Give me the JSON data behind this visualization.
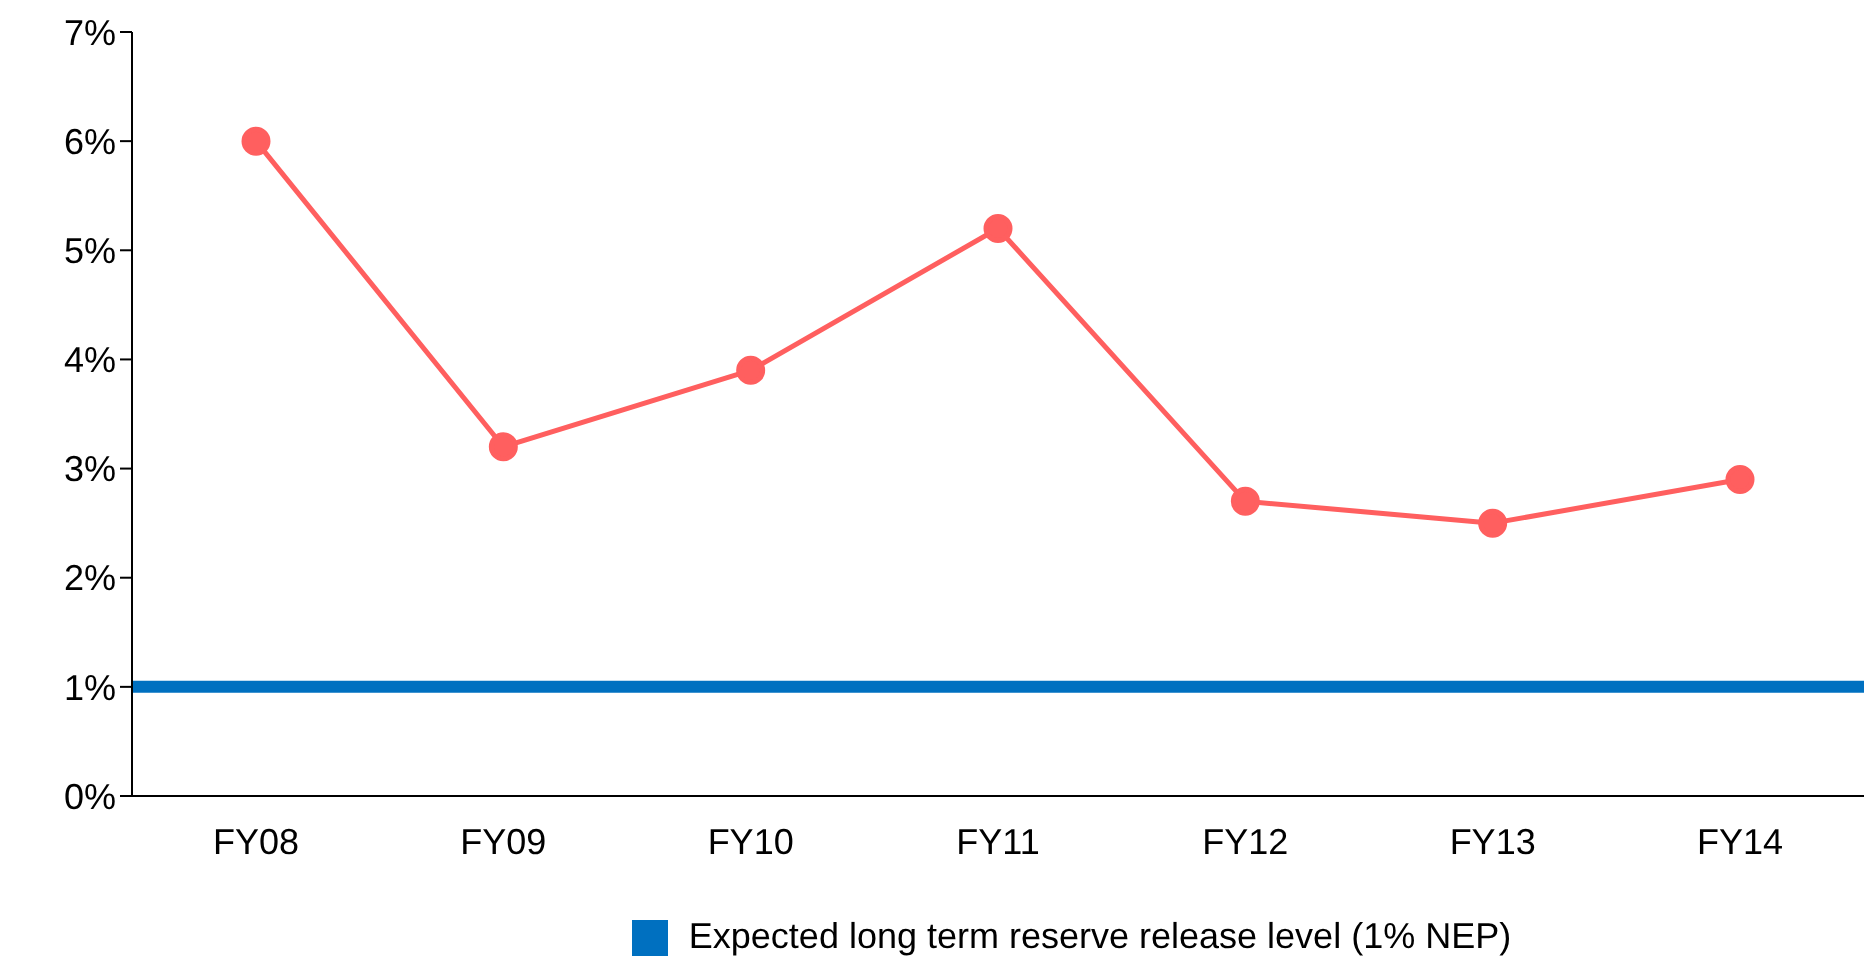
{
  "chart_data": {
    "type": "line",
    "categories": [
      "FY08",
      "FY09",
      "FY10",
      "FY11",
      "FY12",
      "FY13",
      "FY14"
    ],
    "series": [
      {
        "color": "#ff5f5f",
        "values": [
          6.0,
          3.2,
          3.9,
          5.2,
          2.7,
          2.5,
          2.9
        ]
      }
    ],
    "ylim": [
      0,
      7
    ],
    "yticks": [
      {
        "value": 0,
        "label": "0%"
      },
      {
        "value": 1,
        "label": "1%"
      },
      {
        "value": 2,
        "label": "2%"
      },
      {
        "value": 3,
        "label": "3%"
      },
      {
        "value": 4,
        "label": "4%"
      },
      {
        "value": 5,
        "label": "5%"
      },
      {
        "value": 6,
        "label": "6%"
      },
      {
        "value": 7,
        "label": "7%"
      }
    ],
    "ref_lines": [
      {
        "axis": "y",
        "value": 1,
        "label": "Expected long term reserve release level (1% NEP)",
        "color": "#0070c0"
      }
    ],
    "grid": false,
    "legend": "bottom",
    "marker": "circle",
    "line_style": "solid"
  }
}
